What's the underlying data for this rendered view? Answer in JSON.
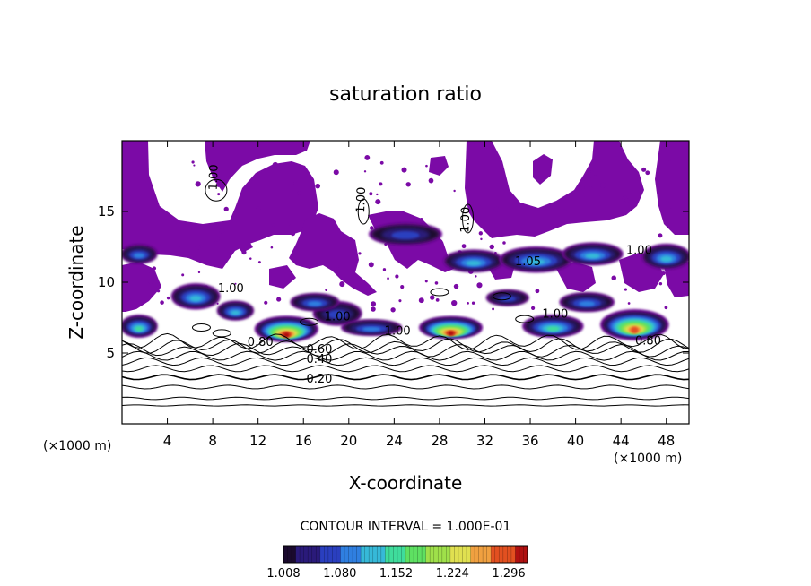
{
  "chart_data": {
    "type": "heatmap",
    "title": "saturation ratio",
    "xlabel": "X-coordinate",
    "ylabel": "Z-coordinate",
    "x_unit": "(×1000 m)",
    "z_unit": "(×1000 m)",
    "xlim": [
      0,
      50
    ],
    "ylim": [
      0,
      20
    ],
    "x_ticks": [
      4,
      8,
      12,
      16,
      20,
      24,
      28,
      32,
      36,
      40,
      44,
      48
    ],
    "y_ticks": [
      5,
      10,
      15
    ],
    "contour_interval_text": "CONTOUR INTERVAL = 1.000E-01",
    "colorbar": {
      "min": 1.008,
      "max": 1.32,
      "tick_values": [
        1.008,
        1.08,
        1.152,
        1.224,
        1.296
      ],
      "tick_labels": [
        "1.008",
        "1.080",
        "1.152",
        "1.224",
        "1.296"
      ],
      "colors": [
        "#1a0a2e",
        "#2a1a7a",
        "#2a3fbf",
        "#2f7fe0",
        "#36b9d8",
        "#3fdc9c",
        "#5ee062",
        "#9fe04a",
        "#e0e050",
        "#f0a040",
        "#e25020",
        "#b01010"
      ],
      "below_min_color": "#7b0aa6"
    },
    "contour_labels": [
      {
        "text": "1.00",
        "x": 8.4,
        "z": 17.4,
        "rotated": true
      },
      {
        "text": "1.00",
        "x": 30.6,
        "z": 14.4,
        "rotated": true
      },
      {
        "text": "1.00",
        "x": 21.4,
        "z": 15.8,
        "rotated": true
      },
      {
        "text": "1.05",
        "x": 35.8,
        "z": 11.2
      },
      {
        "text": "1.00",
        "x": 45.6,
        "z": 12.0
      },
      {
        "text": "1.00",
        "x": 9.6,
        "z": 9.3
      },
      {
        "text": "1.00",
        "x": 19.0,
        "z": 7.3
      },
      {
        "text": "1.00",
        "x": 24.3,
        "z": 6.3
      },
      {
        "text": "1.00",
        "x": 38.2,
        "z": 7.5
      },
      {
        "text": "0.80",
        "x": 12.2,
        "z": 5.5
      },
      {
        "text": "0.80",
        "x": 46.4,
        "z": 5.6
      },
      {
        "text": "0.60",
        "x": 17.4,
        "z": 5.0
      },
      {
        "text": "0.40",
        "x": 17.4,
        "z": 4.3
      },
      {
        "text": "0.20",
        "x": 17.4,
        "z": 2.9
      }
    ],
    "contour_lines_z": [
      1.3,
      1.8,
      2.6,
      3.3,
      3.9,
      4.4,
      4.8,
      5.2,
      5.5,
      5.8
    ],
    "supersaturated_regions": [
      {
        "x": 1.5,
        "z": 6.9,
        "w": 3.0,
        "h": 1.4,
        "peak": 0.45
      },
      {
        "x": 6.5,
        "z": 9.0,
        "w": 4.0,
        "h": 1.6,
        "peak": 0.4
      },
      {
        "x": 10.0,
        "z": 8.0,
        "w": 3.0,
        "h": 1.2,
        "peak": 0.35
      },
      {
        "x": 14.5,
        "z": 6.7,
        "w": 5.2,
        "h": 1.6,
        "peak": 0.98
      },
      {
        "x": 19.0,
        "z": 7.8,
        "w": 4.0,
        "h": 1.5,
        "peak": 0.2
      },
      {
        "x": 22.0,
        "z": 6.8,
        "w": 5.0,
        "h": 1.0,
        "peak": 0.3
      },
      {
        "x": 29.0,
        "z": 6.8,
        "w": 5.2,
        "h": 1.4,
        "peak": 0.98
      },
      {
        "x": 38.0,
        "z": 6.9,
        "w": 5.0,
        "h": 1.4,
        "peak": 0.45
      },
      {
        "x": 45.2,
        "z": 7.0,
        "w": 5.6,
        "h": 1.9,
        "peak": 0.95
      },
      {
        "x": 25.0,
        "z": 13.4,
        "w": 6.0,
        "h": 1.4,
        "peak": 0.15
      },
      {
        "x": 31.0,
        "z": 11.5,
        "w": 5.0,
        "h": 1.4,
        "peak": 0.35
      },
      {
        "x": 36.5,
        "z": 11.6,
        "w": 6.0,
        "h": 1.6,
        "peak": 0.4
      },
      {
        "x": 41.5,
        "z": 12.0,
        "w": 5.0,
        "h": 1.4,
        "peak": 0.35
      },
      {
        "x": 48.0,
        "z": 11.8,
        "w": 4.0,
        "h": 1.6,
        "peak": 0.35
      },
      {
        "x": 1.5,
        "z": 12.0,
        "w": 3.0,
        "h": 1.2,
        "peak": 0.25
      },
      {
        "x": 17.0,
        "z": 8.6,
        "w": 4.0,
        "h": 1.1,
        "peak": 0.25
      },
      {
        "x": 34.0,
        "z": 8.9,
        "w": 3.5,
        "h": 1.0,
        "peak": 0.2
      },
      {
        "x": 41.0,
        "z": 8.6,
        "w": 4.5,
        "h": 1.2,
        "peak": 0.3
      }
    ]
  }
}
